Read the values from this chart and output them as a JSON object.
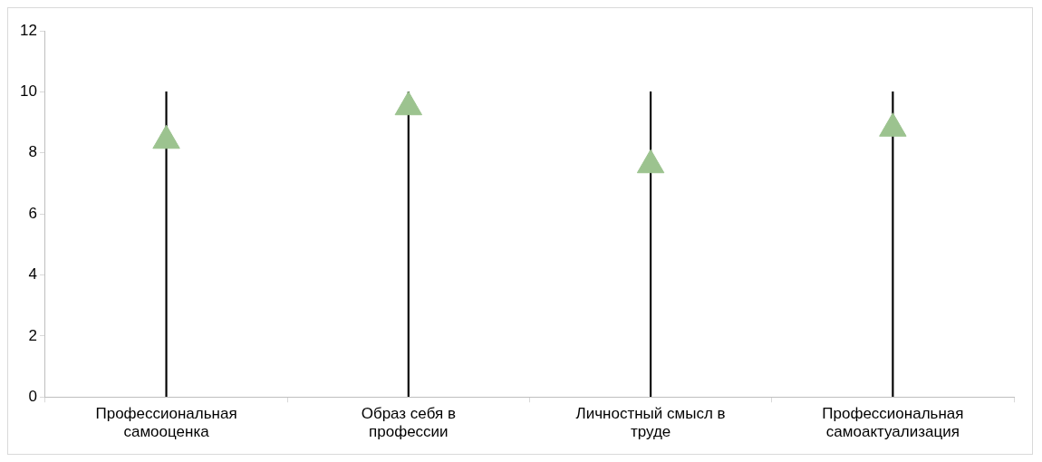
{
  "chart_data": {
    "type": "bar",
    "categories": [
      "Профессиональная самооценка",
      "Образ себя в профессии",
      "Личностный смысл в труде",
      "Профессиональная самоактуализация"
    ],
    "series": [
      {
        "color": "#000000",
        "values": [
          10,
          10,
          10,
          10
        ]
      },
      {
        "type": "scatter",
        "color": "#9cc38f",
        "x": [
          "Профессиональная самооценка",
          "Образ себя в профессии",
          "Личностный смысл в труде",
          "Профессиональная самоактуализация"
        ],
        "values": [
          8.4,
          9.5,
          7.6,
          8.8
        ]
      }
    ],
    "ylim": [
      0,
      12
    ],
    "yticks": [
      0,
      2,
      4,
      6,
      8,
      10,
      12
    ],
    "grid": false,
    "legend": false,
    "marker": "triangle"
  }
}
